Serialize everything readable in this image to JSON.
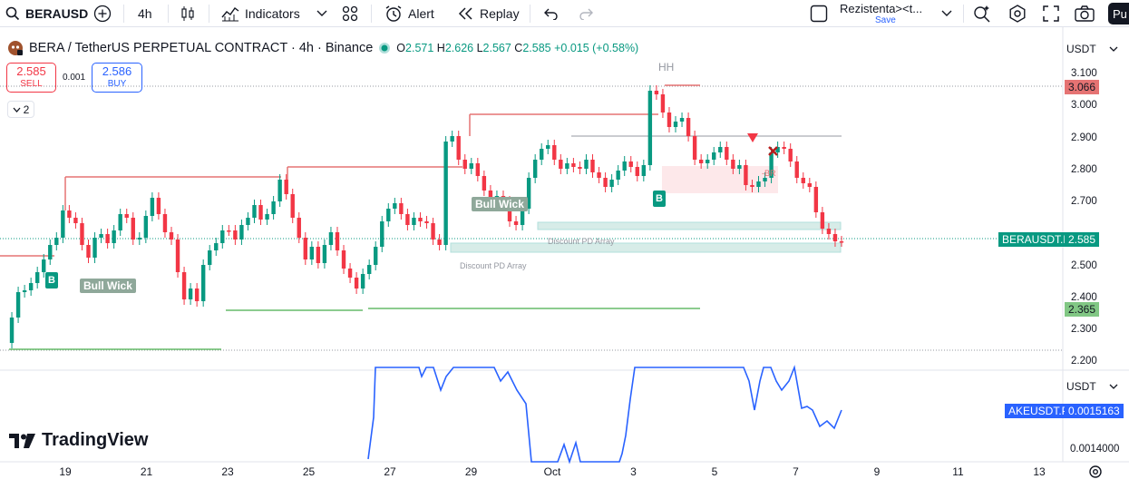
{
  "toolbar": {
    "symbol": "BERAUSD",
    "interval": "4h",
    "indicators_label": "Indicators",
    "alert_label": "Alert",
    "replay_label": "Replay",
    "layout_name": "Rezistenta><t...",
    "layout_status": "Save",
    "publish_label": "Pu"
  },
  "legend": {
    "title": "BERA / TetherUS PERPETUAL CONTRACT · 4h · Binance",
    "o_label": "O",
    "o_value": "2.571",
    "h_label": "H",
    "h_value": "2.626",
    "l_label": "L",
    "l_value": "2.567",
    "c_label": "C",
    "c_value": "2.585",
    "change": "+0.015 (+0.58%)"
  },
  "trade": {
    "sell_price": "2.585",
    "sell_label": "SELL",
    "spread": "0.001",
    "buy_price": "2.586",
    "buy_label": "BUY",
    "layers_count": "2"
  },
  "chart_annotations": {
    "hh": "HH",
    "bull_wick_1": "Bull Wick",
    "bull_wick_2": "Bull Wick",
    "discount_1": "Discount PD Array",
    "discount_2": "Discount PD Array",
    "b_marker": "B",
    "br_marker": "-BR"
  },
  "price_axis": {
    "currency": "USDT",
    "ticks": [
      "3.100",
      "3.000",
      "2.900",
      "2.800",
      "2.700",
      "2.500",
      "2.400",
      "2.300",
      "2.200"
    ],
    "level_high": "3.066",
    "level_low": "2.365",
    "current_symbol": "BERAUSDT.P",
    "current_price": "2.585"
  },
  "lower_pane": {
    "currency": "USDT",
    "symbol": "AKEUSDT.P",
    "value": "0.0015163",
    "tick": "0.0014000"
  },
  "time_axis": {
    "dates": [
      "19",
      "21",
      "23",
      "25",
      "27",
      "29",
      "Oct",
      "3",
      "5",
      "7",
      "9",
      "11",
      "13"
    ]
  },
  "brand": {
    "name": "TradingView"
  },
  "colors": {
    "up": "#089981",
    "down": "#f23645",
    "line": "#2962ff",
    "resistance": "#e57373",
    "support": "#66bb6a"
  }
}
